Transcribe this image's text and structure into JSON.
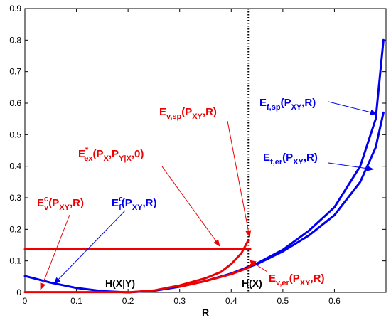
{
  "chart_data": {
    "type": "line",
    "xlabel": "R",
    "ylabel": "",
    "title": "",
    "xlim": [
      0,
      0.7
    ],
    "ylim": [
      0,
      0.9
    ],
    "xticks": [
      "0",
      "0.1",
      "0.2",
      "0.3",
      "0.4",
      "0.5",
      "0.6"
    ],
    "yticks": [
      "0",
      "0.1",
      "0.2",
      "0.3",
      "0.4",
      "0.5",
      "0.6",
      "0.7",
      "0.8",
      "0.9"
    ],
    "grid": false,
    "colors": {
      "blue": "#0000ee",
      "red": "#ee0000"
    },
    "series": [
      {
        "color": "#0000ee",
        "points": [
          [
            0,
            0.052
          ],
          [
            0.05,
            0.031
          ],
          [
            0.1,
            0.014
          ],
          [
            0.15,
            0.004
          ],
          [
            0.2,
            0
          ],
          [
            0.25,
            0.005
          ],
          [
            0.3,
            0.018
          ],
          [
            0.35,
            0.036
          ],
          [
            0.4,
            0.06
          ],
          [
            0.45,
            0.092
          ],
          [
            0.5,
            0.135
          ],
          [
            0.55,
            0.195
          ],
          [
            0.6,
            0.27
          ],
          [
            0.65,
            0.4
          ],
          [
            0.68,
            0.55
          ],
          [
            0.695,
            0.8
          ]
        ]
      },
      {
        "color": "#0000ee",
        "points": [
          [
            0.43,
            0.078
          ],
          [
            0.45,
            0.09
          ],
          [
            0.5,
            0.13
          ],
          [
            0.55,
            0.18
          ],
          [
            0.6,
            0.245
          ],
          [
            0.65,
            0.35
          ],
          [
            0.68,
            0.46
          ],
          [
            0.695,
            0.57
          ]
        ]
      },
      {
        "color": "#ee0000",
        "points": [
          [
            0.2,
            0
          ],
          [
            0.25,
            0.006
          ],
          [
            0.3,
            0.022
          ],
          [
            0.35,
            0.045
          ],
          [
            0.38,
            0.065
          ],
          [
            0.4,
            0.09
          ],
          [
            0.42,
            0.125
          ],
          [
            0.433,
            0.165
          ]
        ]
      },
      {
        "color": "#ee0000",
        "points": [
          [
            0.3,
            0.018
          ],
          [
            0.35,
            0.036
          ],
          [
            0.4,
            0.058
          ],
          [
            0.42,
            0.07
          ],
          [
            0.433,
            0.078
          ],
          [
            0.44,
            0.09
          ]
        ]
      },
      {
        "color": "#ee0000",
        "points": [
          [
            0,
            0.137
          ],
          [
            0.437,
            0.137
          ]
        ]
      },
      {
        "color": "#ee0000",
        "points": [
          [
            0,
            0.001
          ],
          [
            0.2,
            0.001
          ]
        ]
      }
    ],
    "vlines": [
      {
        "x": 0.433,
        "style": "dotted",
        "color": "#000000"
      }
    ],
    "labels": [
      {
        "id": "ef-sp",
        "main": "E",
        "sub": "f,sp",
        "tail": "(P",
        "tailsub": "XY",
        "end": ",R)",
        "color": "blue"
      },
      {
        "id": "ef-er",
        "main": "E",
        "sub": "f,er",
        "tail": "(P",
        "tailsub": "XY",
        "end": ",R)",
        "color": "blue"
      },
      {
        "id": "ev-sp",
        "main": "E",
        "sub": "v,sp",
        "tail": "(P",
        "tailsub": "XY",
        "end": ",R)",
        "color": "red"
      },
      {
        "id": "ev-er",
        "main": "E",
        "sub": "v,er",
        "tail": "(P",
        "tailsub": "XY",
        "end": ",R)",
        "color": "red"
      },
      {
        "id": "eex",
        "main": "E",
        "sup": "*",
        "sub": "ex",
        "tail": "(P",
        "tailsub": "X",
        "mid": ",P",
        "midsub": "Y|X",
        "end": ",0)",
        "color": "red"
      },
      {
        "id": "evc",
        "main": "E",
        "sup": "c",
        "sub": "v",
        "tail": "(P",
        "tailsub": "XY",
        "end": ",R)",
        "color": "red"
      },
      {
        "id": "efc",
        "main": "E",
        "sup": "c",
        "sub": "f",
        "tail": "(P",
        "tailsub": "XY",
        "end": ",R)",
        "color": "blue"
      },
      {
        "id": "hxy",
        "text": "H(X|Y)"
      },
      {
        "id": "hx",
        "text": "H(X)"
      }
    ]
  }
}
